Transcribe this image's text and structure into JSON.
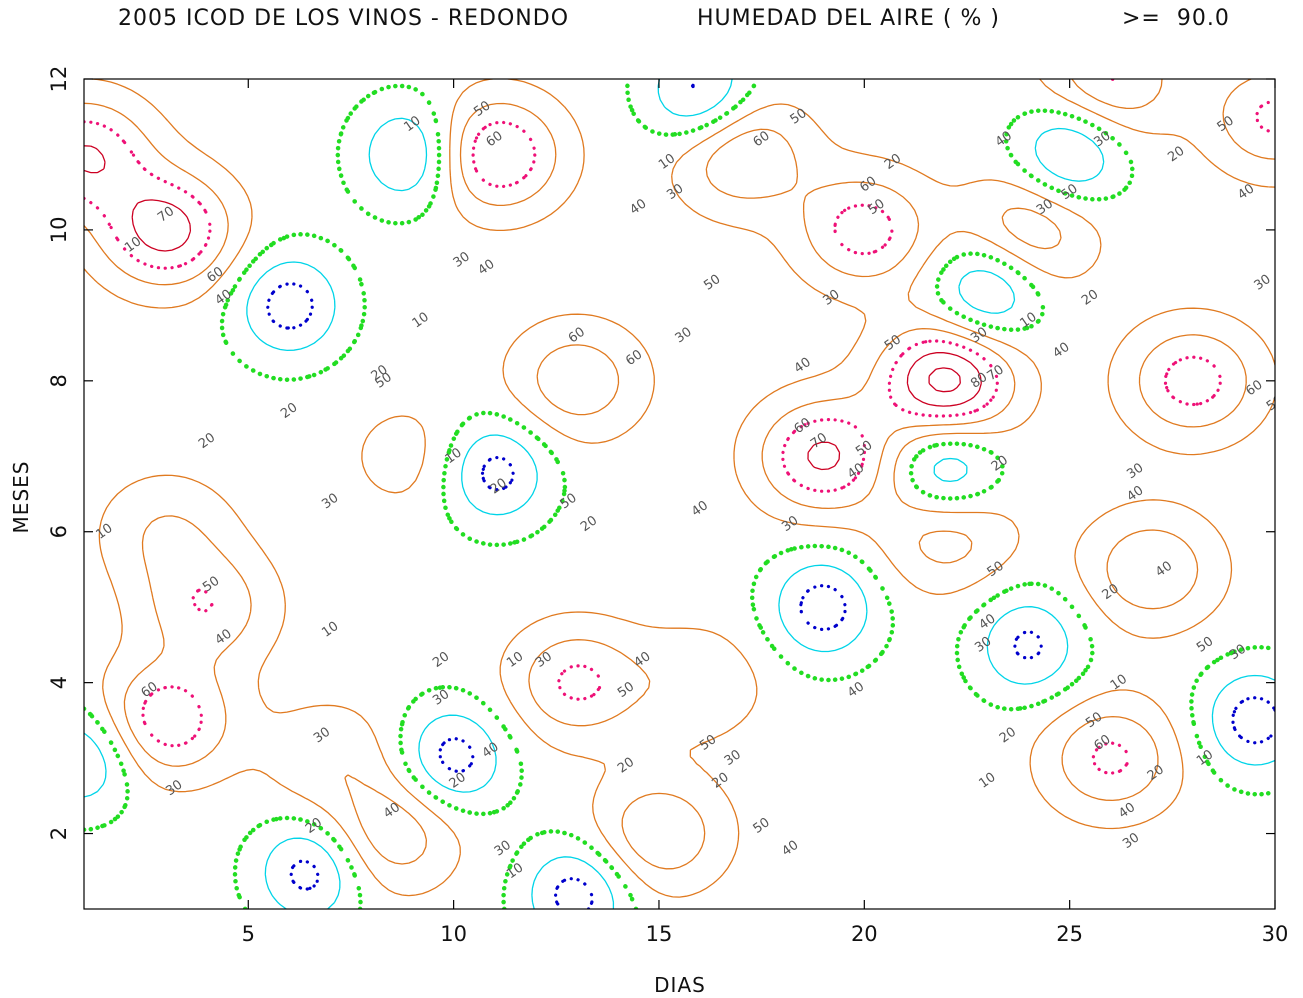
{
  "title": {
    "station": "2005 ICOD DE LOS VINOS - REDONDO",
    "variable": "HUMEDAD DEL AIRE ( % )",
    "threshold": ">=  90.0"
  },
  "chart_data": {
    "type": "contour",
    "xlabel": "DIAS",
    "ylabel": "MESES",
    "xlim": [
      1,
      30
    ],
    "ylim": [
      1,
      12
    ],
    "xticks": [
      5,
      10,
      15,
      20,
      25,
      30
    ],
    "yticks": [
      2,
      4,
      6,
      8,
      10,
      12
    ],
    "contour_levels": [
      10,
      20,
      30,
      40,
      50,
      60,
      70,
      80
    ],
    "level_colors": {
      "10": "#0000cc",
      "20": "#00d4e8",
      "30": "#22dd22",
      "40": "#e07a20",
      "50": "#e07a20",
      "60": "#ee1177",
      "70": "#cc0022",
      "80": "#cc0022"
    },
    "hotspots": [
      {
        "day": 3,
        "month": 10,
        "peak": 75
      },
      {
        "day": 1,
        "month": 11,
        "peak": 70
      },
      {
        "day": 11,
        "month": 11,
        "peak": 72
      },
      {
        "day": 17,
        "month": 11,
        "peak": 62
      },
      {
        "day": 20,
        "month": 10,
        "peak": 65
      },
      {
        "day": 24,
        "month": 10,
        "peak": 60
      },
      {
        "day": 26,
        "month": 12,
        "peak": 62
      },
      {
        "day": 30,
        "month": 11.5,
        "peak": 62
      },
      {
        "day": 22,
        "month": 8,
        "peak": 85
      },
      {
        "day": 28,
        "month": 8,
        "peak": 65
      },
      {
        "day": 19,
        "month": 7,
        "peak": 72
      },
      {
        "day": 13,
        "month": 8,
        "peak": 58
      },
      {
        "day": 3,
        "month": 3.5,
        "peak": 68
      },
      {
        "day": 13,
        "month": 4,
        "peak": 62
      },
      {
        "day": 26,
        "month": 3,
        "peak": 62
      },
      {
        "day": 22,
        "month": 6,
        "peak": 58
      },
      {
        "day": 27,
        "month": 5.5,
        "peak": 60
      },
      {
        "day": 15,
        "month": 2,
        "peak": 60
      },
      {
        "day": 8.5,
        "month": 2,
        "peak": 58
      },
      {
        "day": 4,
        "month": 5,
        "peak": 58
      },
      {
        "day": 3,
        "month": 6,
        "peak": 50
      },
      {
        "day": 9,
        "month": 7,
        "peak": 45
      },
      {
        "day": 16,
        "month": 4,
        "peak": 48
      },
      {
        "day": 7,
        "month": 3,
        "peak": 48
      }
    ],
    "lows": [
      {
        "day": 6,
        "month": 9,
        "value": 5
      },
      {
        "day": 9,
        "month": 11,
        "value": 5
      },
      {
        "day": 16,
        "month": 11.8,
        "value": 5
      },
      {
        "day": 11,
        "month": 6.8,
        "value": 5
      },
      {
        "day": 6.5,
        "month": 1.5,
        "value": 5
      },
      {
        "day": 10,
        "month": 3,
        "value": 5
      },
      {
        "day": 13,
        "month": 1.2,
        "value": 5
      },
      {
        "day": 19,
        "month": 5,
        "value": 5
      },
      {
        "day": 22,
        "month": 6.8,
        "value": 5
      },
      {
        "day": 23,
        "month": 9.2,
        "value": 5
      },
      {
        "day": 25,
        "month": 11,
        "value": 5
      },
      {
        "day": 29.5,
        "month": 3.5,
        "value": 5
      },
      {
        "day": 1,
        "month": 3,
        "value": 8
      },
      {
        "day": 24,
        "month": 4.5,
        "value": 8
      }
    ],
    "contour_labels": [
      {
        "text": "70",
        "day": 3,
        "month": 10.2
      },
      {
        "text": "60",
        "day": 11,
        "month": 11.2
      },
      {
        "text": "50",
        "day": 10.7,
        "month": 11.6
      },
      {
        "text": "10",
        "day": 9,
        "month": 11.4
      },
      {
        "text": "10",
        "day": 15.2,
        "month": 10.9
      },
      {
        "text": "40",
        "day": 14.5,
        "month": 10.3
      },
      {
        "text": "30",
        "day": 15.4,
        "month": 10.5
      },
      {
        "text": "30",
        "day": 10.2,
        "month": 9.6
      },
      {
        "text": "40",
        "day": 10.8,
        "month": 9.5
      },
      {
        "text": "60",
        "day": 4.2,
        "month": 9.4
      },
      {
        "text": "40",
        "day": 4.4,
        "month": 9.1
      },
      {
        "text": "10",
        "day": 9.2,
        "month": 8.8
      },
      {
        "text": "60",
        "day": 13,
        "month": 8.6
      },
      {
        "text": "60",
        "day": 14.4,
        "month": 8.3
      },
      {
        "text": "30",
        "day": 15.6,
        "month": 8.6
      },
      {
        "text": "30",
        "day": 19.2,
        "month": 9.1
      },
      {
        "text": "50",
        "day": 16.3,
        "month": 9.3
      },
      {
        "text": "40",
        "day": 18.5,
        "month": 8.2
      },
      {
        "text": "50",
        "day": 18.4,
        "month": 11.5
      },
      {
        "text": "60",
        "day": 17.5,
        "month": 11.2
      },
      {
        "text": "20",
        "day": 20.7,
        "month": 10.9
      },
      {
        "text": "50",
        "day": 20.3,
        "month": 10.3
      },
      {
        "text": "60",
        "day": 20.1,
        "month": 10.6
      },
      {
        "text": "40",
        "day": 19.4,
        "month": 12.3
      },
      {
        "text": "20",
        "day": 8.2,
        "month": 8.1
      },
      {
        "text": "20",
        "day": 6,
        "month": 7.6
      },
      {
        "text": "20",
        "day": 4,
        "month": 7.2
      },
      {
        "text": "10",
        "day": 10,
        "month": 7
      },
      {
        "text": "20",
        "day": 11.1,
        "month": 6.6
      },
      {
        "text": "30",
        "day": 7,
        "month": 6.4
      },
      {
        "text": "10",
        "day": 1.5,
        "month": 6
      },
      {
        "text": "50",
        "day": 12.8,
        "month": 6.4
      },
      {
        "text": "20",
        "day": 13.3,
        "month": 6.1
      },
      {
        "text": "40",
        "day": 16,
        "month": 6.3
      },
      {
        "text": "30",
        "day": 18.2,
        "month": 6.1
      },
      {
        "text": "40",
        "day": 19.8,
        "month": 6.8
      },
      {
        "text": "50",
        "day": 20,
        "month": 7.1
      },
      {
        "text": "70",
        "day": 18.9,
        "month": 7.2
      },
      {
        "text": "60",
        "day": 18.5,
        "month": 7.4
      },
      {
        "text": "80",
        "day": 22.8,
        "month": 8
      },
      {
        "text": "70",
        "day": 23.2,
        "month": 8.1
      },
      {
        "text": "50",
        "day": 20.7,
        "month": 8.5
      },
      {
        "text": "30",
        "day": 22.8,
        "month": 8.6
      },
      {
        "text": "40",
        "day": 24.8,
        "month": 8.4
      },
      {
        "text": "10",
        "day": 24,
        "month": 8.8
      },
      {
        "text": "20",
        "day": 25.5,
        "month": 9.1
      },
      {
        "text": "40",
        "day": 23.4,
        "month": 11.2
      },
      {
        "text": "30",
        "day": 24.4,
        "month": 10.3
      },
      {
        "text": "50",
        "day": 25,
        "month": 10.5
      },
      {
        "text": "30",
        "day": 25.8,
        "month": 11.2
      },
      {
        "text": "20",
        "day": 27.6,
        "month": 11
      },
      {
        "text": "50",
        "day": 28.8,
        "month": 11.4
      },
      {
        "text": "40",
        "day": 29.3,
        "month": 10.5
      },
      {
        "text": "30",
        "day": 29.7,
        "month": 9.3
      },
      {
        "text": "60",
        "day": 29.5,
        "month": 7.9
      },
      {
        "text": "50",
        "day": 30,
        "month": 7.7
      },
      {
        "text": "20",
        "day": 23.3,
        "month": 6.9
      },
      {
        "text": "40",
        "day": 26.6,
        "month": 6.5
      },
      {
        "text": "30",
        "day": 26.6,
        "month": 6.8
      },
      {
        "text": "50",
        "day": 23.2,
        "month": 5.5
      },
      {
        "text": "40",
        "day": 23,
        "month": 4.8
      },
      {
        "text": "30",
        "day": 22.9,
        "month": 4.5
      },
      {
        "text": "40",
        "day": 27.3,
        "month": 5.5
      },
      {
        "text": "20",
        "day": 26,
        "month": 5.2
      },
      {
        "text": "50",
        "day": 28.3,
        "month": 4.5
      },
      {
        "text": "30",
        "day": 29.1,
        "month": 4.4
      },
      {
        "text": "10",
        "day": 26.2,
        "month": 4
      },
      {
        "text": "50",
        "day": 8.3,
        "month": 8
      },
      {
        "text": "50",
        "day": 4.1,
        "month": 5.3
      },
      {
        "text": "40",
        "day": 4.4,
        "month": 4.6
      },
      {
        "text": "60",
        "day": 2.6,
        "month": 3.9
      },
      {
        "text": "30",
        "day": 3.2,
        "month": 2.6
      },
      {
        "text": "10",
        "day": 7,
        "month": 4.7
      },
      {
        "text": "30",
        "day": 6.8,
        "month": 3.3
      },
      {
        "text": "20",
        "day": 6.6,
        "month": 2.1
      },
      {
        "text": "40",
        "day": 8.5,
        "month": 2.3
      },
      {
        "text": "20",
        "day": 9.7,
        "month": 4.3
      },
      {
        "text": "30",
        "day": 9.7,
        "month": 3.8
      },
      {
        "text": "10",
        "day": 11.5,
        "month": 4.3
      },
      {
        "text": "30",
        "day": 12.2,
        "month": 4.3
      },
      {
        "text": "50",
        "day": 14.2,
        "month": 3.9
      },
      {
        "text": "40",
        "day": 14.6,
        "month": 4.3
      },
      {
        "text": "20",
        "day": 14.2,
        "month": 2.9
      },
      {
        "text": "20",
        "day": 10.1,
        "month": 2.7
      },
      {
        "text": "40",
        "day": 10.9,
        "month": 3.1
      },
      {
        "text": "30",
        "day": 11.2,
        "month": 1.8
      },
      {
        "text": "10",
        "day": 11.5,
        "month": 1.5
      },
      {
        "text": "50",
        "day": 16.2,
        "month": 3.2
      },
      {
        "text": "20",
        "day": 16.5,
        "month": 2.7
      },
      {
        "text": "50",
        "day": 17.5,
        "month": 2.1
      },
      {
        "text": "40",
        "day": 18.2,
        "month": 1.8
      },
      {
        "text": "30",
        "day": 16.8,
        "month": 3
      },
      {
        "text": "40",
        "day": 19.8,
        "month": 3.9
      },
      {
        "text": "10",
        "day": 23,
        "month": 2.7
      },
      {
        "text": "20",
        "day": 23.5,
        "month": 3.3
      },
      {
        "text": "60",
        "day": 25.8,
        "month": 3.2
      },
      {
        "text": "50",
        "day": 25.6,
        "month": 3.5
      },
      {
        "text": "40",
        "day": 26.4,
        "month": 2.3
      },
      {
        "text": "30",
        "day": 26.5,
        "month": 1.9
      },
      {
        "text": "20",
        "day": 27.1,
        "month": 2.8
      },
      {
        "text": "10",
        "day": 28.3,
        "month": 3
      },
      {
        "text": "10",
        "day": 2.2,
        "month": 9.8
      }
    ]
  }
}
